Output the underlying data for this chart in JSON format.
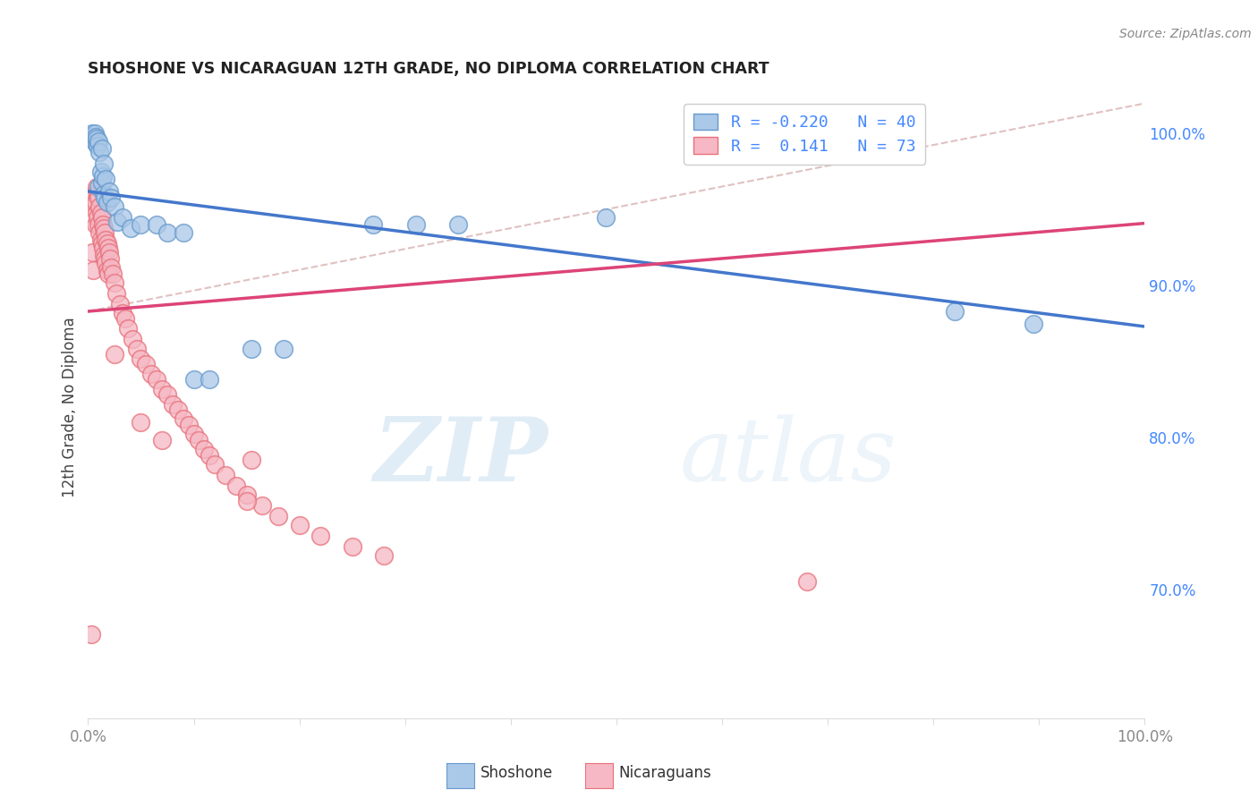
{
  "title": "SHOSHONE VS NICARAGUAN 12TH GRADE, NO DIPLOMA CORRELATION CHART",
  "source": "Source: ZipAtlas.com",
  "ylabel": "12th Grade, No Diploma",
  "legend_shoshone": "Shoshone",
  "legend_nicaraguans": "Nicaraguans",
  "R_shoshone": -0.22,
  "N_shoshone": 40,
  "R_nicaraguans": 0.141,
  "N_nicaraguans": 73,
  "watermark_zip": "ZIP",
  "watermark_atlas": "atlas",
  "background_color": "#ffffff",
  "shoshone_color": "#aac8e8",
  "shoshone_edge_color": "#6699cc",
  "nicaraguan_color": "#f5b8c4",
  "nicaraguan_edge_color": "#e8707a",
  "blue_line_color": "#4477cc",
  "pink_line_color": "#dd4477",
  "dashed_line_color": "#ddbbbb",
  "grid_color": "#dddddd",
  "right_axis_color": "#4488ff",
  "title_color": "#222222",
  "source_color": "#888888",
  "label_color": "#444444",
  "tick_color": "#888888",
  "xlim": [
    0.0,
    1.0
  ],
  "ylim": [
    0.615,
    1.025
  ],
  "right_yticks": [
    0.7,
    0.8,
    0.9,
    1.0
  ],
  "right_yticklabels": [
    "70.0%",
    "80.0%",
    "90.0%",
    "100.0%"
  ],
  "blue_line_y0": 0.962,
  "blue_line_y1": 0.873,
  "pink_line_y0": 0.883,
  "pink_line_y1": 0.941,
  "dash_line_x0": 0.0,
  "dash_line_x1": 1.0,
  "dash_line_y0": 0.883,
  "dash_line_y1": 1.02,
  "shoshone_x": [
    0.003,
    0.004,
    0.005,
    0.006,
    0.007,
    0.007,
    0.008,
    0.009,
    0.01,
    0.01,
    0.011,
    0.012,
    0.013,
    0.013,
    0.014,
    0.015,
    0.015,
    0.016,
    0.017,
    0.018,
    0.02,
    0.022,
    0.025,
    0.028,
    0.033,
    0.04,
    0.05,
    0.065,
    0.075,
    0.09,
    0.1,
    0.115,
    0.155,
    0.185,
    0.27,
    0.31,
    0.35,
    0.49,
    0.82,
    0.895
  ],
  "shoshone_y": [
    0.998,
    1.0,
    0.997,
    1.0,
    0.998,
    0.994,
    0.997,
    0.992,
    0.995,
    0.965,
    0.988,
    0.975,
    0.968,
    0.99,
    0.972,
    0.96,
    0.98,
    0.958,
    0.97,
    0.955,
    0.962,
    0.958,
    0.952,
    0.942,
    0.945,
    0.938,
    0.94,
    0.94,
    0.935,
    0.935,
    0.838,
    0.838,
    0.858,
    0.858,
    0.94,
    0.94,
    0.94,
    0.945,
    0.883,
    0.875
  ],
  "nicaraguan_x": [
    0.003,
    0.004,
    0.005,
    0.005,
    0.006,
    0.007,
    0.007,
    0.008,
    0.008,
    0.009,
    0.009,
    0.01,
    0.01,
    0.011,
    0.011,
    0.012,
    0.012,
    0.013,
    0.013,
    0.014,
    0.014,
    0.015,
    0.015,
    0.016,
    0.016,
    0.017,
    0.017,
    0.018,
    0.018,
    0.019,
    0.019,
    0.02,
    0.021,
    0.022,
    0.023,
    0.025,
    0.027,
    0.03,
    0.033,
    0.035,
    0.038,
    0.042,
    0.046,
    0.05,
    0.055,
    0.06,
    0.065,
    0.07,
    0.075,
    0.08,
    0.085,
    0.09,
    0.095,
    0.1,
    0.105,
    0.11,
    0.115,
    0.12,
    0.13,
    0.14,
    0.15,
    0.165,
    0.18,
    0.2,
    0.22,
    0.25,
    0.28,
    0.05,
    0.07,
    0.155,
    0.025,
    0.15,
    0.68
  ],
  "nicaraguan_y": [
    0.67,
    0.922,
    0.955,
    0.91,
    0.96,
    0.955,
    0.94,
    0.965,
    0.948,
    0.96,
    0.945,
    0.958,
    0.94,
    0.952,
    0.935,
    0.948,
    0.93,
    0.945,
    0.928,
    0.94,
    0.925,
    0.938,
    0.92,
    0.935,
    0.918,
    0.93,
    0.915,
    0.928,
    0.91,
    0.925,
    0.908,
    0.922,
    0.918,
    0.912,
    0.908,
    0.902,
    0.895,
    0.888,
    0.882,
    0.878,
    0.872,
    0.865,
    0.858,
    0.852,
    0.848,
    0.842,
    0.838,
    0.832,
    0.828,
    0.822,
    0.818,
    0.812,
    0.808,
    0.802,
    0.798,
    0.792,
    0.788,
    0.782,
    0.775,
    0.768,
    0.762,
    0.755,
    0.748,
    0.742,
    0.735,
    0.728,
    0.722,
    0.81,
    0.798,
    0.785,
    0.855,
    0.758,
    0.705
  ]
}
